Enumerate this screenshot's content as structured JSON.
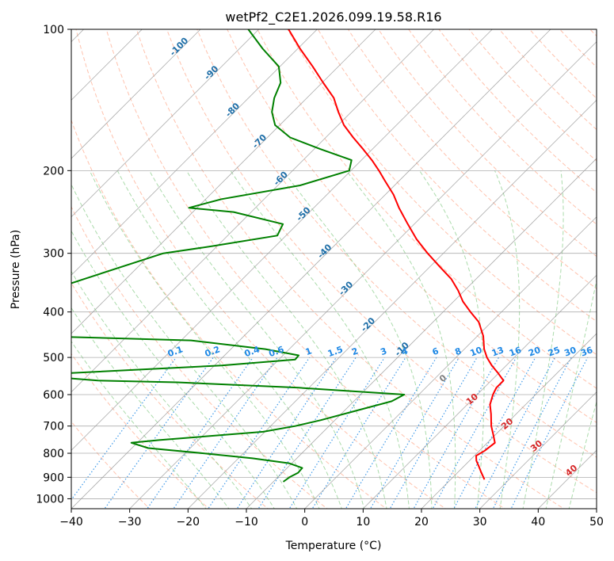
{
  "chart_data": {
    "type": "line",
    "title": "wetPf2_C2E1.2026.099.19.58.R16",
    "xlabel": "Temperature (°C)",
    "ylabel": "Pressure (hPa)",
    "xlim": [
      -40,
      50
    ],
    "ylim": [
      1050,
      100
    ],
    "x_ticks": [
      -40,
      -30,
      -20,
      -10,
      0,
      10,
      20,
      30,
      40,
      50
    ],
    "y_ticks": [
      100,
      200,
      300,
      400,
      500,
      600,
      700,
      800,
      900,
      1000
    ],
    "skew": 45,
    "colors": {
      "temperature": "#ff0000",
      "dewpoint": "#008000",
      "isotherm": "#999999",
      "dry_adiabat": "#ff9977",
      "moist_adiabat": "#88cc88",
      "mixing_ratio": "#1e88e5",
      "isotherm_label": "#1f6fa8",
      "moist_label": "#d62728",
      "zero_label": "#7f7f7f"
    },
    "series": [
      {
        "name": "Temperature",
        "points": [
          {
            "p": 910,
            "t": 25.8
          },
          {
            "p": 880,
            "t": 24.1
          },
          {
            "p": 850,
            "t": 22.4
          },
          {
            "p": 830,
            "t": 21.2
          },
          {
            "p": 810,
            "t": 20.3
          },
          {
            "p": 790,
            "t": 20.9
          },
          {
            "p": 760,
            "t": 21.3
          },
          {
            "p": 730,
            "t": 19.6
          },
          {
            "p": 700,
            "t": 17.8
          },
          {
            "p": 660,
            "t": 15.7
          },
          {
            "p": 630,
            "t": 13.9
          },
          {
            "p": 600,
            "t": 12.7
          },
          {
            "p": 580,
            "t": 12.1
          },
          {
            "p": 560,
            "t": 12.1
          },
          {
            "p": 540,
            "t": 9.9
          },
          {
            "p": 520,
            "t": 7.5
          },
          {
            "p": 500,
            "t": 5.3
          },
          {
            "p": 480,
            "t": 3.4
          },
          {
            "p": 450,
            "t": 1.0
          },
          {
            "p": 420,
            "t": -2.2
          },
          {
            "p": 400,
            "t": -5.3
          },
          {
            "p": 380,
            "t": -8.4
          },
          {
            "p": 360,
            "t": -11.1
          },
          {
            "p": 340,
            "t": -14.3
          },
          {
            "p": 320,
            "t": -18.4
          },
          {
            "p": 300,
            "t": -22.7
          },
          {
            "p": 280,
            "t": -27.0
          },
          {
            "p": 260,
            "t": -31.1
          },
          {
            "p": 240,
            "t": -35.4
          },
          {
            "p": 225,
            "t": -38.6
          },
          {
            "p": 210,
            "t": -42.5
          },
          {
            "p": 200,
            "t": -45.2
          },
          {
            "p": 190,
            "t": -48.2
          },
          {
            "p": 180,
            "t": -51.6
          },
          {
            "p": 170,
            "t": -55.3
          },
          {
            "p": 160,
            "t": -59.0
          },
          {
            "p": 150,
            "t": -62.2
          },
          {
            "p": 140,
            "t": -65.4
          },
          {
            "p": 130,
            "t": -69.8
          },
          {
            "p": 120,
            "t": -74.4
          },
          {
            "p": 110,
            "t": -79.6
          },
          {
            "p": 100,
            "t": -84.9
          }
        ]
      },
      {
        "name": "Dewpoint",
        "points": [
          {
            "p": 920,
            "t": -8.3
          },
          {
            "p": 900,
            "t": -8.0
          },
          {
            "p": 880,
            "t": -7.3
          },
          {
            "p": 860,
            "t": -7.4
          },
          {
            "p": 840,
            "t": -10.5
          },
          {
            "p": 820,
            "t": -17.6
          },
          {
            "p": 800,
            "t": -27.0
          },
          {
            "p": 780,
            "t": -37.2
          },
          {
            "p": 760,
            "t": -41.0
          },
          {
            "p": 750,
            "t": -36.7
          },
          {
            "p": 720,
            "t": -20.3
          },
          {
            "p": 700,
            "t": -15.8
          },
          {
            "p": 680,
            "t": -12.4
          },
          {
            "p": 650,
            "t": -8.1
          },
          {
            "p": 620,
            "t": -3.5
          },
          {
            "p": 600,
            "t": -2.5
          },
          {
            "p": 580,
            "t": -21.8
          },
          {
            "p": 565,
            "t": -43.5
          },
          {
            "p": 560,
            "t": -57.4
          },
          {
            "p": 550,
            "t": -66.0
          },
          {
            "p": 540,
            "t": -63.5
          },
          {
            "p": 520,
            "t": -38.8
          },
          {
            "p": 505,
            "t": -27.2
          },
          {
            "p": 495,
            "t": -27.3
          },
          {
            "p": 480,
            "t": -34.1
          },
          {
            "p": 460,
            "t": -48.3
          },
          {
            "p": 450,
            "t": -76.2
          },
          {
            "p": 445,
            "t": -85.0
          },
          {
            "p": 380,
            "t": -85.0
          },
          {
            "p": 340,
            "t": -77.1
          },
          {
            "p": 300,
            "t": -68.0
          },
          {
            "p": 290,
            "t": -61.0
          },
          {
            "p": 275,
            "t": -51.5
          },
          {
            "p": 260,
            "t": -52.5
          },
          {
            "p": 245,
            "t": -63.0
          },
          {
            "p": 240,
            "t": -71.4
          },
          {
            "p": 230,
            "t": -67.3
          },
          {
            "p": 215,
            "t": -56.2
          },
          {
            "p": 200,
            "t": -50.3
          },
          {
            "p": 190,
            "t": -51.7
          },
          {
            "p": 180,
            "t": -58.9
          },
          {
            "p": 170,
            "t": -66.1
          },
          {
            "p": 160,
            "t": -70.8
          },
          {
            "p": 150,
            "t": -73.6
          },
          {
            "p": 140,
            "t": -75.6
          },
          {
            "p": 130,
            "t": -77.1
          },
          {
            "p": 120,
            "t": -80.2
          },
          {
            "p": 110,
            "t": -86.0
          },
          {
            "p": 100,
            "t": -91.8
          }
        ]
      }
    ],
    "isotherm_labels": [
      "-100",
      "-90",
      "-80",
      "-70",
      "-60",
      "-50",
      "-40",
      "-30",
      "-20",
      "-10"
    ],
    "mixing_ratio_labels": [
      "0.1",
      "0.2",
      "0.4",
      "0.6",
      "1",
      "1.5",
      "2",
      "3",
      "4",
      "6",
      "8",
      "10",
      "13",
      "16",
      "20",
      "25",
      "30",
      "36"
    ],
    "moist_adiabat_labels": [
      "0",
      "10",
      "20",
      "30",
      "40"
    ]
  }
}
